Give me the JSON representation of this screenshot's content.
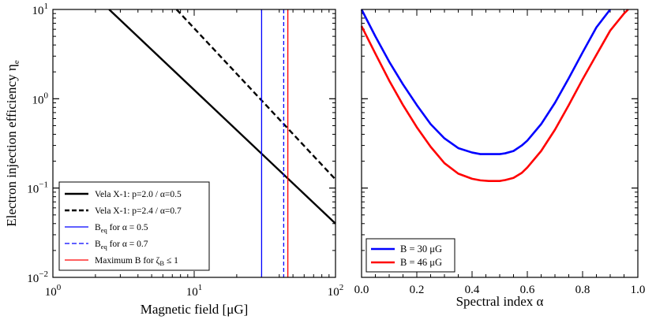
{
  "chart_data": [
    {
      "type": "line",
      "title": "",
      "xscale": "log",
      "yscale": "log",
      "xlim": [
        1,
        100
      ],
      "ylim": [
        0.01,
        10
      ],
      "xlabel": "Magnetic field [μG]",
      "ylabel": "Electron injection efficiency η",
      "ylabel_sub": "e",
      "xticks": [
        {
          "base": "10",
          "exp": "0"
        },
        {
          "base": "10",
          "exp": "1"
        },
        {
          "base": "10",
          "exp": "2"
        }
      ],
      "yticks": [
        {
          "base": "10",
          "exp": "−2"
        },
        {
          "base": "10",
          "exp": "−1"
        },
        {
          "base": "10",
          "exp": "0"
        },
        {
          "base": "10",
          "exp": "1"
        }
      ],
      "series": [
        {
          "name": "Vela X-1: p=2.0 / α=0.5",
          "kind": "line",
          "color": "#000000",
          "dash": "solid",
          "x": [
            2.5,
            100
          ],
          "y": [
            10,
            0.04
          ]
        },
        {
          "name": "Vela X-1: p=2.4 / α=0.7",
          "kind": "line",
          "color": "#000000",
          "dash": "dashed",
          "x": [
            7.5,
            100
          ],
          "y": [
            10,
            0.125
          ]
        },
        {
          "name_main": "B",
          "name_sub": "eq",
          "name_rest": " for α = 0.5",
          "kind": "vline",
          "color": "#0000ff",
          "dash": "solid",
          "x": 30
        },
        {
          "name_main": "B",
          "name_sub": "eq",
          "name_rest": " for α = 0.7",
          "kind": "vline",
          "color": "#0000ff",
          "dash": "dashed",
          "x": 43
        },
        {
          "name_main": "Maximum B for ζ",
          "name_sub": "B",
          "name_rest": " ≤ 1",
          "kind": "vline",
          "color": "#ff0000",
          "dash": "solid",
          "x": 46
        }
      ],
      "legend_position": "bottom-left"
    },
    {
      "type": "line",
      "title": "",
      "yscale": "log",
      "xlim": [
        0.0,
        1.0
      ],
      "ylim": [
        0.01,
        10
      ],
      "xlabel": "Spectral index α",
      "ylabel": "",
      "xticks": [
        "0.0",
        "0.2",
        "0.4",
        "0.6",
        "0.8",
        "1.0"
      ],
      "xtick_values": [
        0,
        0.2,
        0.4,
        0.6,
        0.8,
        1.0
      ],
      "series": [
        {
          "name": "B = 30 μG",
          "color": "#0000ff",
          "x": [
            0.0,
            0.05,
            0.1,
            0.15,
            0.2,
            0.25,
            0.3,
            0.35,
            0.4,
            0.43,
            0.46,
            0.48,
            0.5,
            0.52,
            0.55,
            0.58,
            0.6,
            0.65,
            0.7,
            0.75,
            0.8,
            0.85,
            0.9
          ],
          "y": [
            10,
            5.0,
            2.6,
            1.45,
            0.85,
            0.52,
            0.36,
            0.28,
            0.25,
            0.24,
            0.24,
            0.24,
            0.24,
            0.245,
            0.26,
            0.3,
            0.34,
            0.52,
            0.9,
            1.7,
            3.3,
            6.3,
            10
          ]
        },
        {
          "name": "B = 46 μG",
          "color": "#ff0000",
          "x": [
            0.0,
            0.05,
            0.1,
            0.15,
            0.2,
            0.25,
            0.3,
            0.35,
            0.4,
            0.43,
            0.46,
            0.48,
            0.5,
            0.52,
            0.55,
            0.58,
            0.6,
            0.65,
            0.7,
            0.75,
            0.8,
            0.85,
            0.9,
            0.95,
            0.965
          ],
          "y": [
            6.5,
            3.2,
            1.6,
            0.85,
            0.48,
            0.29,
            0.19,
            0.145,
            0.127,
            0.122,
            0.12,
            0.12,
            0.12,
            0.123,
            0.13,
            0.148,
            0.17,
            0.26,
            0.45,
            0.85,
            1.65,
            3.1,
            5.8,
            9.0,
            10
          ]
        }
      ],
      "legend_position": "bottom-left"
    }
  ]
}
